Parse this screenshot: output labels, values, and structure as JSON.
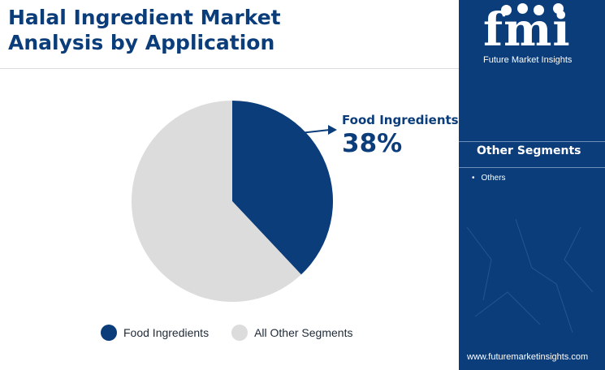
{
  "title": "Halal Ingredient Market Analysis by Application",
  "chart_data": {
    "type": "pie",
    "categories": [
      "Food Ingredients",
      "All Other Segments"
    ],
    "values": [
      38,
      62
    ],
    "colors": [
      "#0b3d7a",
      "#dcdcdc"
    ],
    "callout": {
      "name": "Food Ingredients",
      "value": "38%"
    },
    "legend_position": "bottom"
  },
  "legend": [
    {
      "label": "Food Ingredients",
      "color": "#0b3d7a"
    },
    {
      "label": "All Other Segments",
      "color": "#dcdcdc"
    }
  ],
  "brand": {
    "letters": "fmi",
    "tagline": "Future Market Insights",
    "url": "www.futuremarketinsights.com",
    "panel_color": "#0b3d7a"
  },
  "other_segments": {
    "title": "Other Segments",
    "items": [
      "Others"
    ]
  }
}
